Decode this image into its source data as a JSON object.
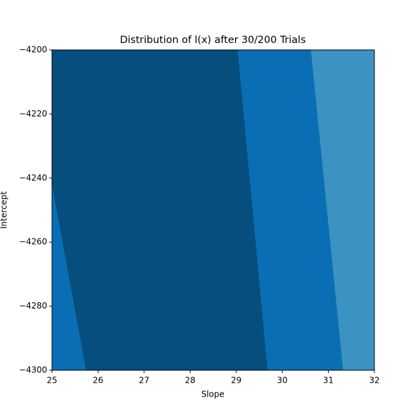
{
  "chart_data": {
    "type": "contour",
    "title": "Distribution of l(x) after 30/200 Trials",
    "x_label": "Slope",
    "y_label": "Intercept",
    "xlim": [
      25,
      32
    ],
    "xticks": [
      25,
      26,
      27,
      28,
      29,
      30,
      31,
      32
    ],
    "ylim": [
      -4300,
      -4200
    ],
    "yticks": [
      {
        "value": -4300,
        "label": "−4300"
      },
      {
        "value": -4280,
        "label": "−4280"
      },
      {
        "value": -4260,
        "label": "−4260"
      },
      {
        "value": -4240,
        "label": "−4240"
      },
      {
        "value": -4220,
        "label": "−4220"
      },
      {
        "value": -4200,
        "label": "−4200"
      }
    ],
    "colors": [
      "#0a6eb4",
      "#054e7d",
      "#0a6eb4",
      "#3b92c3"
    ],
    "boundaries": [
      {
        "x": [
          25,
          25.74
        ],
        "y": [
          -4242,
          -4300
        ]
      },
      {
        "x": [
          29.03,
          29.68
        ],
        "y": [
          -4200,
          -4300
        ]
      },
      {
        "x": [
          30.62,
          31.32
        ],
        "y": [
          -4200,
          -4300
        ]
      }
    ]
  }
}
